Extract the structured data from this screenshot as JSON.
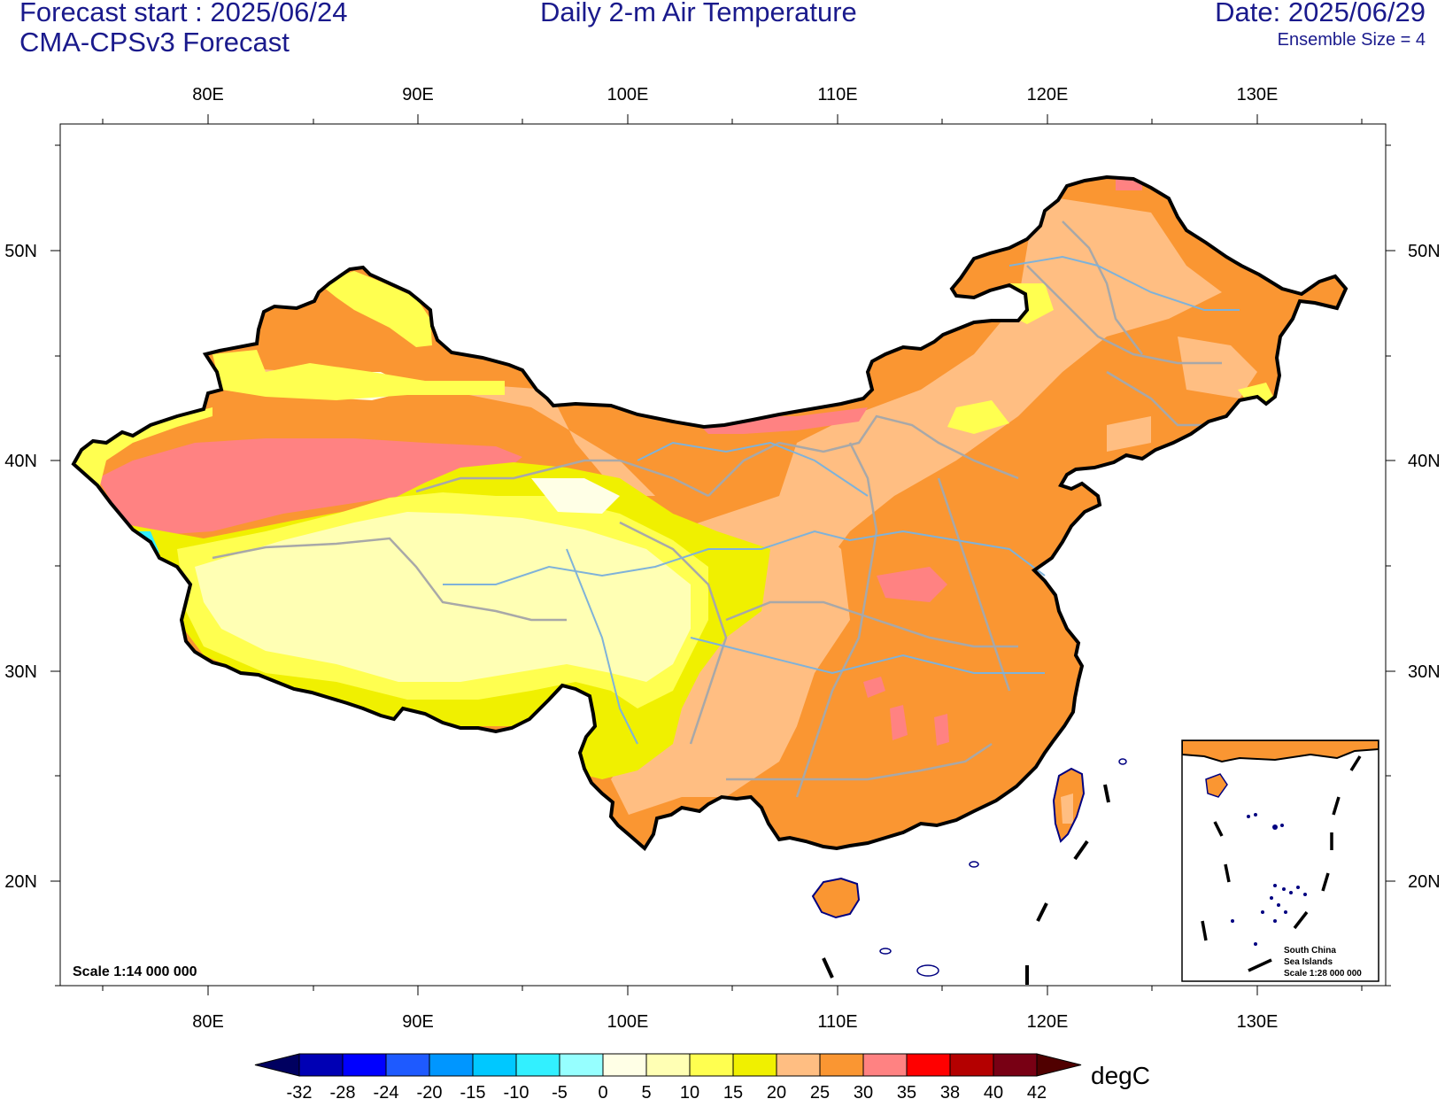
{
  "header": {
    "forecast_start": "Forecast start : 2025/06/24",
    "model": "CMA-CPSv3 Forecast",
    "title": "Daily 2-m Air Temperature",
    "date": "Date: 2025/06/29",
    "ensemble": "Ensemble Size = 4"
  },
  "map": {
    "lon_ticks": [
      "80E",
      "90E",
      "100E",
      "110E",
      "120E",
      "130E"
    ],
    "lat_ticks": [
      "50N",
      "40N",
      "30N",
      "20N"
    ],
    "scale_main": "Scale 1:14 000 000",
    "inset": {
      "line1": "South China",
      "line2": "Sea Islands",
      "line3": "Scale 1:28 000 000"
    }
  },
  "legend": {
    "unit": "degC",
    "labels": [
      "-32",
      "-28",
      "-24",
      "-20",
      "-15",
      "-10",
      "-5",
      "0",
      "5",
      "10",
      "15",
      "20",
      "25",
      "30",
      "35",
      "38",
      "40",
      "42"
    ],
    "colors": [
      "#000060",
      "#0000b4",
      "#0000ff",
      "#1e5aff",
      "#0096ff",
      "#00c8ff",
      "#32f0ff",
      "#96ffff",
      "#ffffe6",
      "#ffffb4",
      "#ffff50",
      "#f0f000",
      "#ffbe82",
      "#fa9632",
      "#ff8282",
      "#ff0000",
      "#b40000",
      "#780014",
      "#500000"
    ]
  },
  "palette": {
    "border": "#000000",
    "coast": "#000080",
    "province": "#a8a8a8",
    "river": "#7fb2d9",
    "text_navy": "#1a1a8c"
  }
}
